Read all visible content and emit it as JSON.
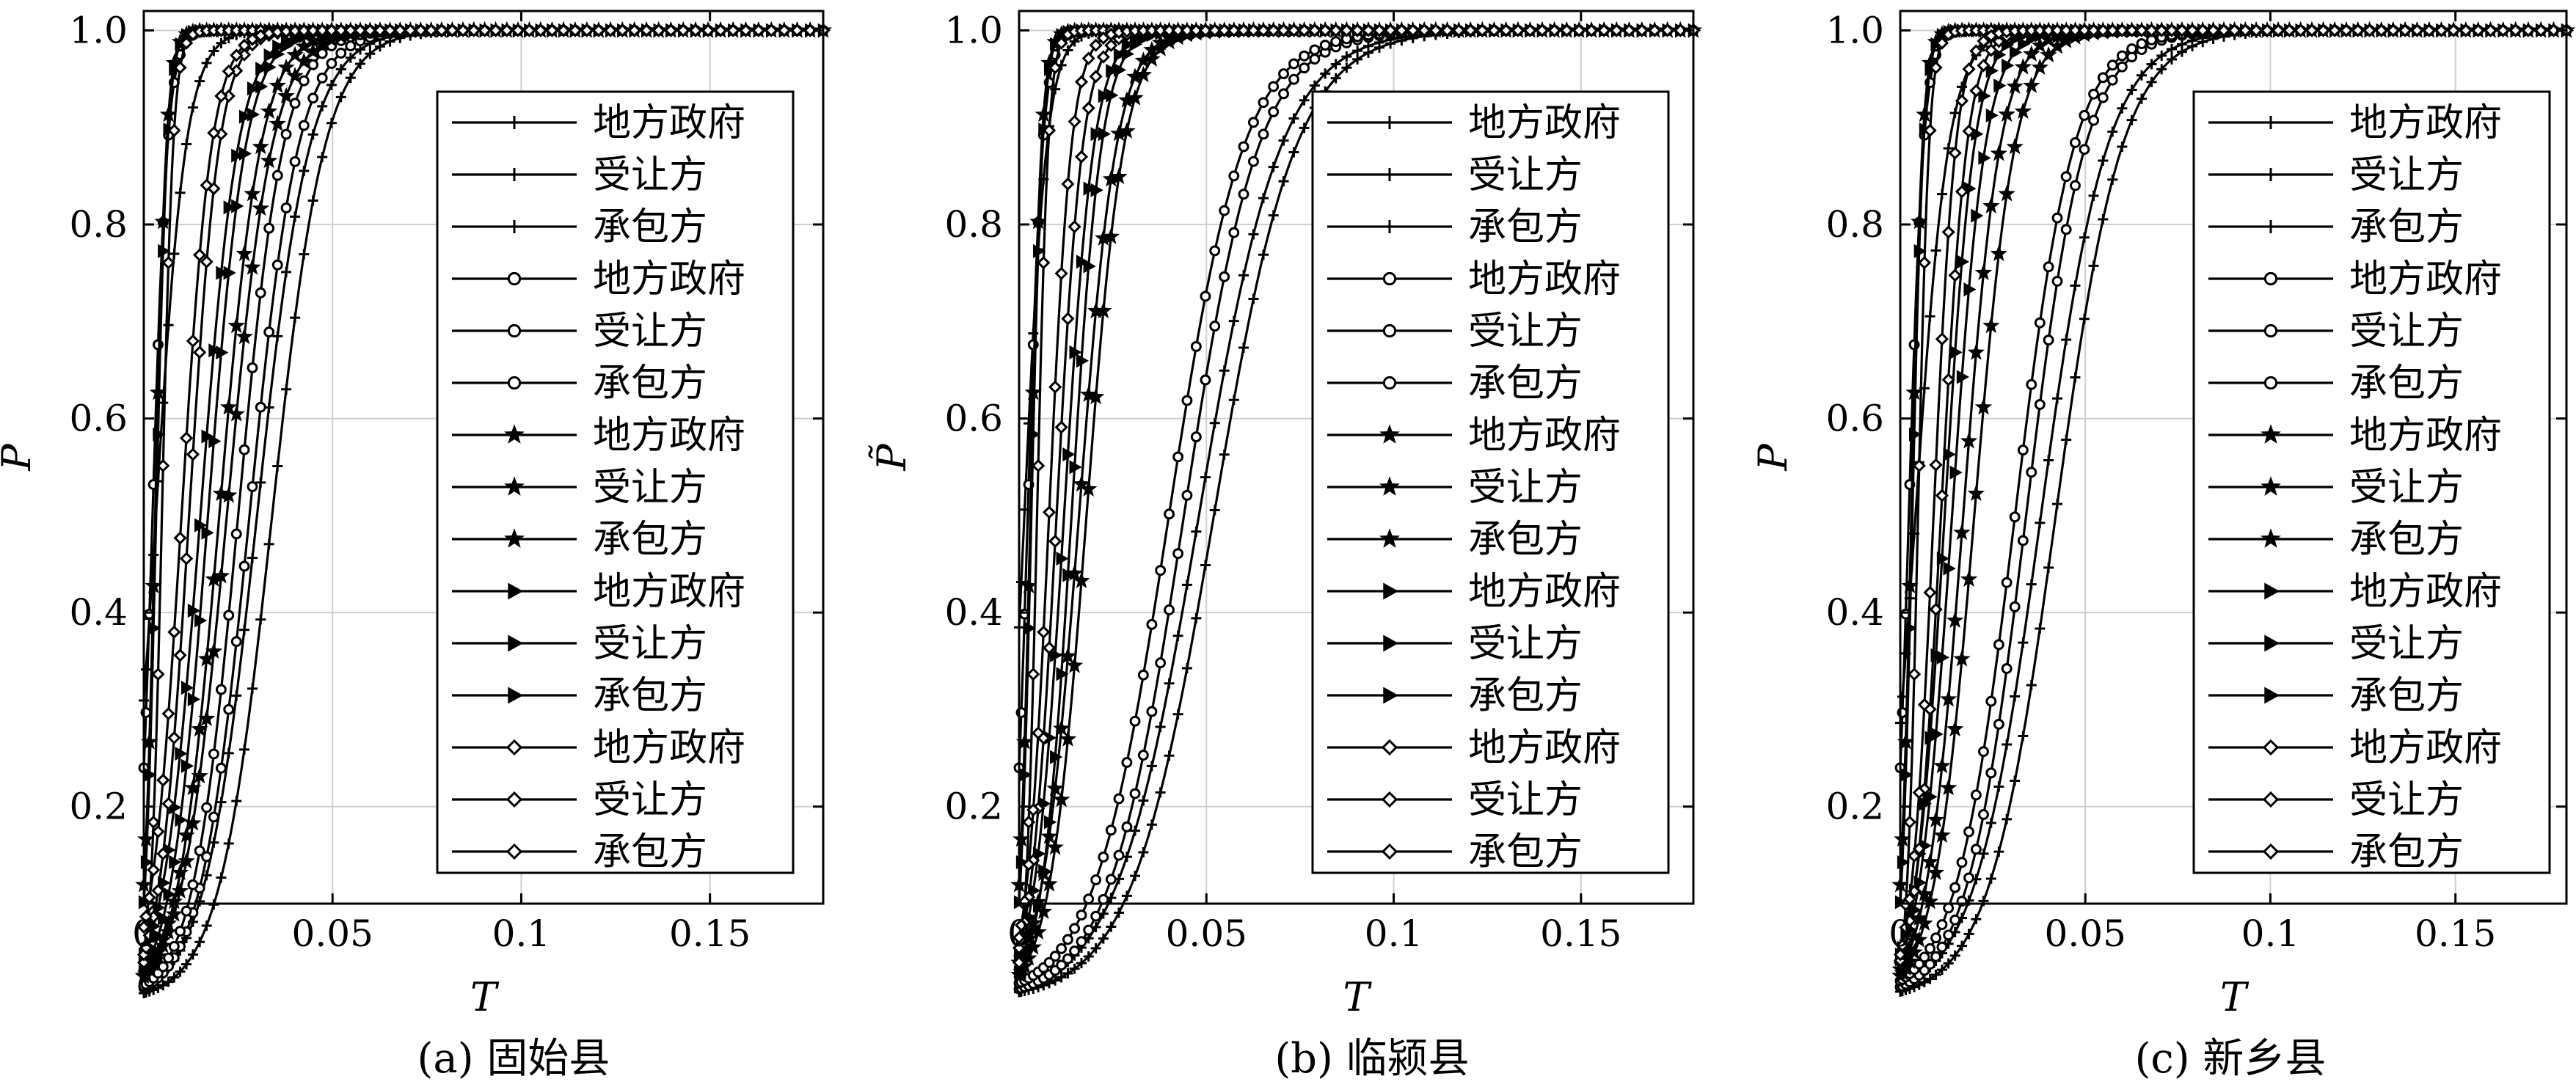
{
  "figure": {
    "legend_entries": [
      "地方政府",
      "受让方",
      "承包方",
      "地方政府",
      "受让方",
      "承包方",
      "地方政府",
      "受让方",
      "承包方",
      "地方政府",
      "受让方",
      "承包方",
      "地方政府",
      "受让方",
      "承包方"
    ]
  },
  "chart_data": [
    {
      "type": "line",
      "caption": "(a) 固始县",
      "xlabel": "T",
      "ylabel": "P",
      "xlim": [
        0,
        0.18
      ],
      "ylim": [
        0.1,
        1.02
      ],
      "xticks": [
        "0",
        "0.05",
        "0.1",
        "0.15"
      ],
      "yticks": [
        "0.2",
        "0.4",
        "0.6",
        "0.8",
        "1.0"
      ],
      "grid": true,
      "legend_position": "right",
      "series": [
        {
          "name": "地方政府",
          "marker": "plus",
          "start": 0.1,
          "t_half": 0.012,
          "width": 0.004
        },
        {
          "name": "受让方",
          "marker": "plus",
          "start": 0.5,
          "t_half": 0.034,
          "width": 0.007
        },
        {
          "name": "承包方",
          "marker": "plus",
          "start": 0.5,
          "t_half": 0.03,
          "width": 0.007
        },
        {
          "name": "地方政府",
          "marker": "circle",
          "start": 0.3,
          "t_half": 0.004,
          "width": 0.002
        },
        {
          "name": "受让方",
          "marker": "circle",
          "start": 0.5,
          "t_half": 0.028,
          "width": 0.0065
        },
        {
          "name": "承包方",
          "marker": "circle",
          "start": 0.5,
          "t_half": 0.025,
          "width": 0.006
        },
        {
          "name": "地方政府",
          "marker": "star",
          "start": 0.5,
          "t_half": 0.003,
          "width": 0.0015
        },
        {
          "name": "受让方",
          "marker": "star",
          "start": 0.5,
          "t_half": 0.022,
          "width": 0.006
        },
        {
          "name": "承包方",
          "marker": "star",
          "start": 0.5,
          "t_half": 0.02,
          "width": 0.0055
        },
        {
          "name": "地方政府",
          "marker": "triangle",
          "start": 0.7,
          "t_half": 0.002,
          "width": 0.0015
        },
        {
          "name": "受让方",
          "marker": "triangle",
          "start": 0.5,
          "t_half": 0.017,
          "width": 0.005
        },
        {
          "name": "承包方",
          "marker": "triangle",
          "start": 0.5,
          "t_half": 0.015,
          "width": 0.005
        },
        {
          "name": "地方政府",
          "marker": "diamond",
          "start": 0.9,
          "t_half": 0.0015,
          "width": 0.0015
        },
        {
          "name": "受让方",
          "marker": "diamond",
          "start": 0.5,
          "t_half": 0.012,
          "width": 0.004
        },
        {
          "name": "承包方",
          "marker": "diamond",
          "start": 0.5,
          "t_half": 0.01,
          "width": 0.004
        }
      ]
    },
    {
      "type": "line",
      "caption": "(b) 临颍县",
      "xlabel": "T",
      "ylabel": "P̃",
      "xlim": [
        0,
        0.18
      ],
      "ylim": [
        0.1,
        1.02
      ],
      "xticks": [
        "0",
        "0.05",
        "0.1",
        "0.15"
      ],
      "yticks": [
        "0.2",
        "0.4",
        "0.6",
        "0.8",
        "1.0"
      ],
      "grid": true,
      "legend_position": "right",
      "series": [
        {
          "name": "地方政府",
          "marker": "plus",
          "start": 0.1,
          "t_half": 0.008,
          "width": 0.003
        },
        {
          "name": "受让方",
          "marker": "plus",
          "start": 0.5,
          "t_half": 0.052,
          "width": 0.011
        },
        {
          "name": "承包方",
          "marker": "plus",
          "start": 0.5,
          "t_half": 0.048,
          "width": 0.011
        },
        {
          "name": "地方政府",
          "marker": "circle",
          "start": 0.3,
          "t_half": 0.004,
          "width": 0.002
        },
        {
          "name": "受让方",
          "marker": "circle",
          "start": 0.5,
          "t_half": 0.044,
          "width": 0.01
        },
        {
          "name": "承包方",
          "marker": "circle",
          "start": 0.5,
          "t_half": 0.04,
          "width": 0.01
        },
        {
          "name": "地方政府",
          "marker": "star",
          "start": 0.5,
          "t_half": 0.003,
          "width": 0.0015
        },
        {
          "name": "受让方",
          "marker": "star",
          "start": 0.5,
          "t_half": 0.018,
          "width": 0.005
        },
        {
          "name": "承包方",
          "marker": "star",
          "start": 0.5,
          "t_half": 0.016,
          "width": 0.005
        },
        {
          "name": "地方政府",
          "marker": "triangle",
          "start": 0.7,
          "t_half": 0.002,
          "width": 0.0015
        },
        {
          "name": "受让方",
          "marker": "triangle",
          "start": 0.5,
          "t_half": 0.014,
          "width": 0.004
        },
        {
          "name": "承包方",
          "marker": "triangle",
          "start": 0.5,
          "t_half": 0.012,
          "width": 0.004
        },
        {
          "name": "地方政府",
          "marker": "diamond",
          "start": 0.9,
          "t_half": 0.0015,
          "width": 0.0015
        },
        {
          "name": "受让方",
          "marker": "diamond",
          "start": 0.5,
          "t_half": 0.01,
          "width": 0.0035
        },
        {
          "name": "承包方",
          "marker": "diamond",
          "start": 0.5,
          "t_half": 0.008,
          "width": 0.003
        }
      ]
    },
    {
      "type": "line",
      "caption": "(c) 新乡县",
      "xlabel": "T",
      "ylabel": "P",
      "xlim": [
        0,
        0.18
      ],
      "ylim": [
        0.1,
        1.02
      ],
      "xticks": [
        "0",
        "0.05",
        "0.1",
        "0.15"
      ],
      "yticks": [
        "0.2",
        "0.4",
        "0.6",
        "0.8",
        "1.0"
      ],
      "grid": true,
      "legend_position": "right",
      "series": [
        {
          "name": "地方政府",
          "marker": "plus",
          "start": 0.1,
          "t_half": 0.014,
          "width": 0.0045
        },
        {
          "name": "受让方",
          "marker": "plus",
          "start": 0.5,
          "t_half": 0.042,
          "width": 0.009
        },
        {
          "name": "承包方",
          "marker": "plus",
          "start": 0.5,
          "t_half": 0.038,
          "width": 0.009
        },
        {
          "name": "地方政府",
          "marker": "circle",
          "start": 0.3,
          "t_half": 0.004,
          "width": 0.002
        },
        {
          "name": "受让方",
          "marker": "circle",
          "start": 0.5,
          "t_half": 0.034,
          "width": 0.008
        },
        {
          "name": "承包方",
          "marker": "circle",
          "start": 0.5,
          "t_half": 0.031,
          "width": 0.008
        },
        {
          "name": "地方政府",
          "marker": "star",
          "start": 0.5,
          "t_half": 0.003,
          "width": 0.0015
        },
        {
          "name": "受让方",
          "marker": "star",
          "start": 0.5,
          "t_half": 0.02,
          "width": 0.0055
        },
        {
          "name": "承包方",
          "marker": "star",
          "start": 0.5,
          "t_half": 0.017,
          "width": 0.005
        },
        {
          "name": "地方政府",
          "marker": "triangle",
          "start": 0.7,
          "t_half": 0.002,
          "width": 0.0015
        },
        {
          "name": "受让方",
          "marker": "triangle",
          "start": 0.5,
          "t_half": 0.014,
          "width": 0.0045
        },
        {
          "name": "承包方",
          "marker": "triangle",
          "start": 0.5,
          "t_half": 0.012,
          "width": 0.004
        },
        {
          "name": "地方政府",
          "marker": "diamond",
          "start": 0.9,
          "t_half": 0.0015,
          "width": 0.0015
        },
        {
          "name": "受让方",
          "marker": "diamond",
          "start": 0.5,
          "t_half": 0.011,
          "width": 0.0035
        },
        {
          "name": "承包方",
          "marker": "diamond",
          "start": 0.5,
          "t_half": 0.009,
          "width": 0.003
        }
      ]
    }
  ]
}
